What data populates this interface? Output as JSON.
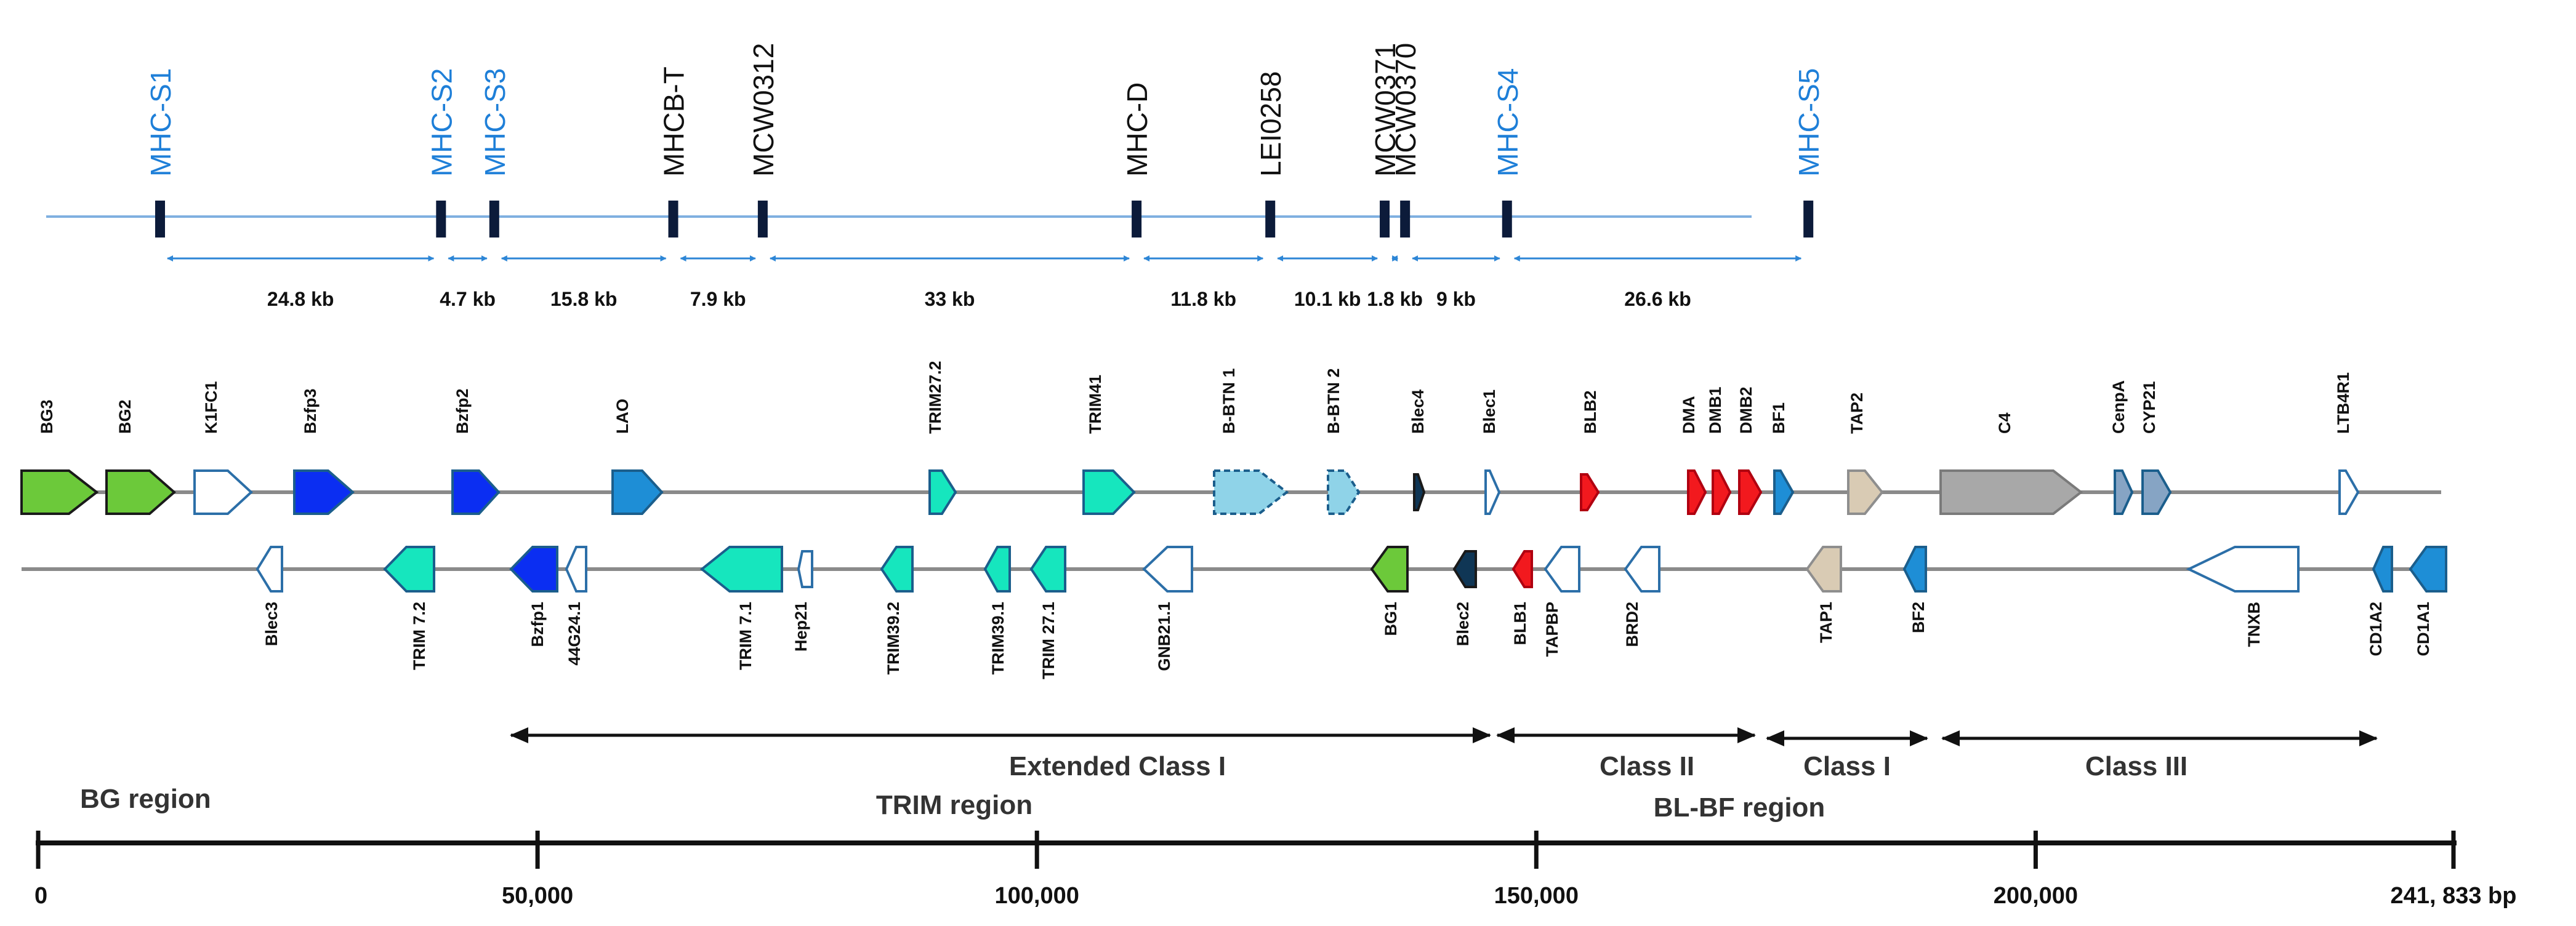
{
  "colors": {
    "blue_text": "#1E7FD8",
    "black": "#000000",
    "line": "#8A8A8A",
    "marker_line": "#7FB0E0",
    "arrow": "#2D86D6",
    "marker": "#0C1B3A",
    "green": "#6CC93A",
    "white": "#FFFFFF",
    "dark_blue": "#0B2EF2",
    "mid_blue": "#1E8ED6",
    "light_teal": "#8FD3E8",
    "aqua": "#16E6BE",
    "red": "#F2191E",
    "beige": "#D9CBB4",
    "grey": "#A8A8A8",
    "steel": "#86A4C4",
    "pale": "#E6F0FA",
    "navy": "#0F3655"
  },
  "markers": [
    {
      "label": "MHC-S1",
      "pos": 0,
      "color": "blue"
    },
    {
      "label": "MHC-S2",
      "pos": 24.8,
      "color": "blue"
    },
    {
      "label": "MHC-S3",
      "pos": 29.5,
      "color": "blue"
    },
    {
      "label": "MHCB-T",
      "pos": 45.3,
      "color": "black"
    },
    {
      "label": "MCW0312",
      "pos": 53.2,
      "color": "black"
    },
    {
      "label": "MHC-D",
      "pos": 86.2,
      "color": "black"
    },
    {
      "label": "LEI0258",
      "pos": 98.0,
      "color": "black"
    },
    {
      "label": "MCW0371",
      "pos": 108.1,
      "color": "black"
    },
    {
      "label": "MCW0370",
      "pos": 109.9,
      "color": "black"
    },
    {
      "label": "MHC-S4",
      "pos": 118.9,
      "color": "blue"
    },
    {
      "label": "MHC-S5",
      "pos": 145.5,
      "color": "blue"
    }
  ],
  "distances": [
    "24.8 kb",
    "4.7 kb",
    "15.8 kb",
    "7.9 kb",
    "33 kb",
    "11.8 kb",
    "10.1 kb",
    "1.8 kb",
    "9 kb",
    "26.6 kb"
  ],
  "top_genes": [
    {
      "name": "BG3",
      "color": "green"
    },
    {
      "name": "BG2",
      "color": "green"
    },
    {
      "name": "K1FC1",
      "color": "white"
    },
    {
      "name": "Bzfp3",
      "color": "dark_blue"
    },
    {
      "name": "Bzfp2",
      "color": "dark_blue"
    },
    {
      "name": "LAO",
      "color": "mid_blue"
    },
    {
      "name": "TRIM27.2",
      "color": "aqua"
    },
    {
      "name": "TRIM41",
      "color": "aqua"
    },
    {
      "name": "B-BTN 1",
      "color": "light_teal"
    },
    {
      "name": "B-BTN 2",
      "color": "light_teal"
    },
    {
      "name": "Blec4",
      "color": "navy"
    },
    {
      "name": "Blec1",
      "color": "white"
    },
    {
      "name": "BLB2",
      "color": "red"
    },
    {
      "name": "DMA",
      "color": "red"
    },
    {
      "name": "DMB1",
      "color": "red"
    },
    {
      "name": "DMB2",
      "color": "red"
    },
    {
      "name": "BF1",
      "color": "mid_blue"
    },
    {
      "name": "TAP2",
      "color": "beige"
    },
    {
      "name": "C4",
      "color": "grey"
    },
    {
      "name": "CenpA",
      "color": "steel"
    },
    {
      "name": "CYP21",
      "color": "steel"
    },
    {
      "name": "LTB4R1",
      "color": "white"
    }
  ],
  "bottom_genes": [
    {
      "name": "Blec3",
      "color": "white"
    },
    {
      "name": "TRIM 7.2",
      "color": "aqua"
    },
    {
      "name": "Bzfp1",
      "color": "dark_blue"
    },
    {
      "name": "44G24.1",
      "color": "white"
    },
    {
      "name": "TRIM 7.1",
      "color": "aqua"
    },
    {
      "name": "Hep21",
      "color": "white"
    },
    {
      "name": "TRIM39.2",
      "color": "aqua"
    },
    {
      "name": "TRIM39.1",
      "color": "aqua"
    },
    {
      "name": "TRIM 27.1",
      "color": "aqua"
    },
    {
      "name": "GNB21.1",
      "color": "white"
    },
    {
      "name": "BG1",
      "color": "green"
    },
    {
      "name": "Blec2",
      "color": "navy"
    },
    {
      "name": "BLB1",
      "color": "red"
    },
    {
      "name": "TAPBP",
      "color": "white"
    },
    {
      "name": "BRD2",
      "color": "white"
    },
    {
      "name": "TAP1",
      "color": "beige"
    },
    {
      "name": "BF2",
      "color": "mid_blue"
    },
    {
      "name": "TNXB",
      "color": "white"
    },
    {
      "name": "CD1A2",
      "color": "mid_blue"
    },
    {
      "name": "CD1A1",
      "color": "mid_blue"
    }
  ],
  "regions": {
    "extended_class_i": "Extended Class I",
    "class_ii": "Class II",
    "class_i": "Class I",
    "class_iii": "Class III",
    "bg_region": "BG region",
    "trim_region": "TRIM region",
    "bl_bf_region": "BL-BF region"
  },
  "scale": {
    "max_bp": 241833,
    "ticks": [
      {
        "value": 0,
        "label": "0"
      },
      {
        "value": 50000,
        "label": "50,000"
      },
      {
        "value": 100000,
        "label": "100,000"
      },
      {
        "value": 150000,
        "label": "150,000"
      },
      {
        "value": 200000,
        "label": "200,000"
      },
      {
        "value": 241833,
        "label": "241, 833 bp"
      }
    ]
  }
}
